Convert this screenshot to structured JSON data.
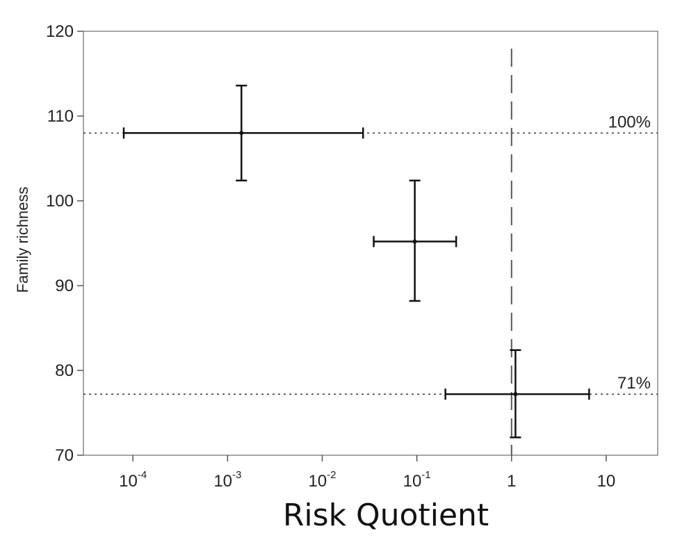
{
  "chart_data": {
    "type": "scatter",
    "xlabel": "Risk Quotient",
    "ylabel": "Family richness",
    "xscale": "log",
    "xlim": [
      3e-05,
      35
    ],
    "ylim": [
      70,
      120
    ],
    "yticks": [
      {
        "value": 70,
        "label": "70"
      },
      {
        "value": 80,
        "label": "80"
      },
      {
        "value": 90,
        "label": "90"
      },
      {
        "value": 100,
        "label": "100"
      },
      {
        "value": 110,
        "label": "110"
      },
      {
        "value": 120,
        "label": "120"
      }
    ],
    "xticks": [
      {
        "value": 0.0001,
        "base": "10",
        "exp": "-4"
      },
      {
        "value": 0.001,
        "base": "10",
        "exp": "-3"
      },
      {
        "value": 0.01,
        "base": "10",
        "exp": "-2"
      },
      {
        "value": 0.1,
        "base": "10",
        "exp": "-1"
      },
      {
        "value": 1,
        "base": "1",
        "exp": ""
      },
      {
        "value": 10,
        "base": "10",
        "exp": ""
      }
    ],
    "points": [
      {
        "x": 0.0014,
        "y": 108.0,
        "x_low": 8e-05,
        "x_high": 0.027,
        "y_low": 102.4,
        "y_high": 113.6
      },
      {
        "x": 0.095,
        "y": 95.2,
        "x_low": 0.035,
        "x_high": 0.26,
        "y_low": 88.2,
        "y_high": 102.4
      },
      {
        "x": 1.1,
        "y": 77.2,
        "x_low": 0.2,
        "x_high": 6.6,
        "y_low": 72.1,
        "y_high": 82.4
      }
    ],
    "reference_lines": [
      {
        "orientation": "horizontal",
        "y": 108,
        "style": "dotted",
        "label": "100%"
      },
      {
        "orientation": "horizontal",
        "y": 77.2,
        "style": "dotted",
        "label": "71%"
      },
      {
        "orientation": "vertical",
        "x": 1,
        "style": "dashed",
        "label": ""
      }
    ],
    "grid": false
  }
}
